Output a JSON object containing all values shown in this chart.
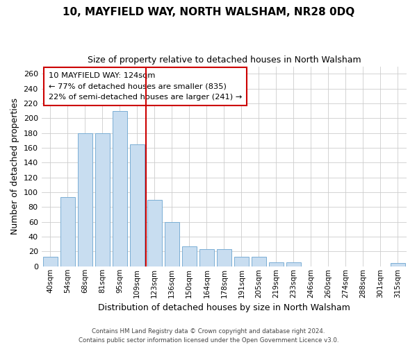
{
  "title": "10, MAYFIELD WAY, NORTH WALSHAM, NR28 0DQ",
  "subtitle": "Size of property relative to detached houses in North Walsham",
  "xlabel": "Distribution of detached houses by size in North Walsham",
  "ylabel": "Number of detached properties",
  "bar_labels": [
    "40sqm",
    "54sqm",
    "68sqm",
    "81sqm",
    "95sqm",
    "109sqm",
    "123sqm",
    "136sqm",
    "150sqm",
    "164sqm",
    "178sqm",
    "191sqm",
    "205sqm",
    "219sqm",
    "233sqm",
    "246sqm",
    "260sqm",
    "274sqm",
    "288sqm",
    "301sqm",
    "315sqm"
  ],
  "bar_values": [
    13,
    93,
    180,
    180,
    210,
    165,
    90,
    60,
    27,
    23,
    23,
    13,
    13,
    5,
    5,
    0,
    0,
    0,
    0,
    0,
    4
  ],
  "bar_color": "#c8ddf0",
  "bar_edge_color": "#7aaed4",
  "highlight_index": 6,
  "highlight_line_color": "#cc0000",
  "ylim": [
    0,
    270
  ],
  "yticks": [
    0,
    20,
    40,
    60,
    80,
    100,
    120,
    140,
    160,
    180,
    200,
    220,
    240,
    260
  ],
  "box_text_line1": "10 MAYFIELD WAY: 124sqm",
  "box_text_line2": "← 77% of detached houses are smaller (835)",
  "box_text_line3": "22% of semi-detached houses are larger (241) →",
  "box_color": "#ffffff",
  "box_edge_color": "#cc0000",
  "footer_line1": "Contains HM Land Registry data © Crown copyright and database right 2024.",
  "footer_line2": "Contains public sector information licensed under the Open Government Licence v3.0.",
  "background_color": "#ffffff",
  "plot_background_color": "#ffffff",
  "grid_color": "#cccccc"
}
